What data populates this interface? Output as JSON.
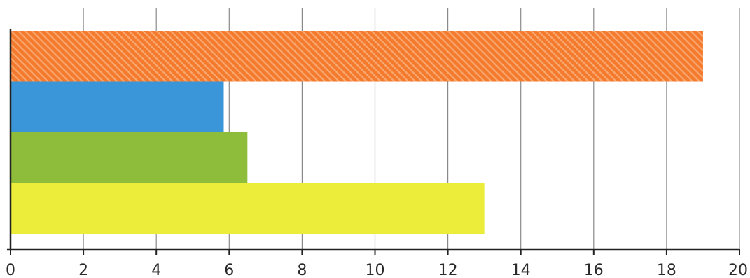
{
  "chart_data": {
    "type": "bar",
    "orientation": "horizontal",
    "title": "",
    "xlabel": "",
    "ylabel": "",
    "xlim": [
      0,
      20
    ],
    "xticks": [
      0,
      2,
      4,
      6,
      8,
      10,
      12,
      14,
      16,
      18,
      20
    ],
    "grid": "vertical",
    "legend": "none",
    "bars": [
      {
        "value": 19.0,
        "color": "#f47a2e",
        "pattern": "diagonal-hatch"
      },
      {
        "value": 5.85,
        "color": "#3a96d8",
        "pattern": "solid"
      },
      {
        "value": 6.5,
        "color": "#8ebd3b",
        "pattern": "solid"
      },
      {
        "value": 13.0,
        "color": "#ecec3a",
        "pattern": "solid"
      }
    ]
  }
}
